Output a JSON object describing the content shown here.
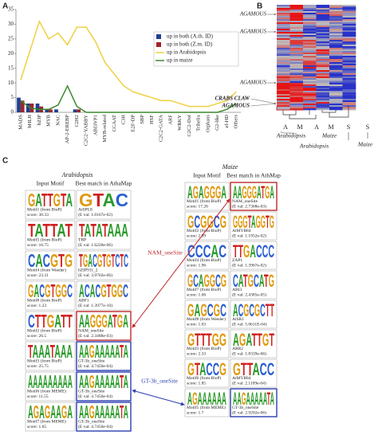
{
  "panel_labels": [
    "A",
    "B",
    "C"
  ],
  "chart_data": {
    "type": "combo",
    "categories": [
      "MADS",
      "bHLH",
      "bZIP",
      "MYB",
      "NAC",
      "AP-2-EREBP",
      "C2H2",
      "C2C2-YABBY",
      "ABI3VP1",
      "MYB-related",
      "CCAAT",
      "C3H",
      "E2F-DP",
      "SBP",
      "HSF",
      "C2C2-GATA",
      "ARF",
      "WRKY",
      "C2C2-Dof",
      "Trihelix",
      "Orphans",
      "G2-like",
      "zf-HD",
      "Others"
    ],
    "series": [
      {
        "name": "up in both (A.th. ID)",
        "type": "bar",
        "color": "#1f3f8f",
        "values": [
          5,
          3,
          3,
          1,
          1,
          0,
          1,
          0,
          0,
          0,
          0,
          0,
          0,
          0,
          0,
          0,
          0,
          0,
          0,
          0,
          0,
          0,
          0,
          0
        ]
      },
      {
        "name": "up in both (Z.m. ID)",
        "type": "bar",
        "color": "#a0242a",
        "values": [
          4,
          3,
          2,
          1,
          0,
          0,
          1,
          0,
          0,
          0,
          0,
          0,
          0,
          0,
          0,
          0,
          0,
          0,
          0,
          0,
          0,
          0,
          0,
          0
        ]
      },
      {
        "name": "up in Arabidopsis",
        "type": "line",
        "color": "#f0d040",
        "values": [
          11,
          21,
          31,
          25,
          27,
          23,
          29,
          29,
          24,
          17,
          13,
          9,
          7,
          6,
          5,
          4,
          4,
          3,
          2,
          2,
          2,
          3,
          4,
          7
        ]
      },
      {
        "name": "up in maize",
        "type": "line",
        "color": "#3a8a2a",
        "values": [
          4,
          1.5,
          1,
          1,
          2.5,
          9,
          2,
          0,
          0,
          0,
          0,
          0,
          0,
          0,
          0,
          0,
          0,
          0,
          0,
          0,
          0,
          0,
          1,
          3
        ]
      }
    ],
    "ylim": [
      0,
      35
    ],
    "yticks": [
      0,
      5,
      10,
      15,
      20,
      25,
      30,
      35
    ],
    "grid": false,
    "legend": "right"
  },
  "heatmap": {
    "row_labels": [
      "AGAMOUS",
      "AGAMOUS",
      "AGAMOUS",
      "CRABS CLAW",
      "AGAMOUS"
    ],
    "column_labels": [
      "A",
      "M",
      "A",
      "M",
      "S",
      "S"
    ],
    "group_labels": [
      "Arabidopsis",
      "Maize",
      "Arabidopsis",
      "Maize"
    ]
  },
  "motifs": {
    "arrows": [
      "NAM_oneSite",
      "GT-3b_oneSite"
    ],
    "left": {
      "species": "Arabidopsis",
      "headers": [
        "Input Motif",
        "Best match in AthaMap"
      ],
      "rows": [
        {
          "input_logo": "GATTGTA",
          "input_name": "Motif1 (from BioP)",
          "input_score": "score: 30.33",
          "match_logo": "GTAC",
          "match_name": "AtSPL8",
          "match_eval": "(E val: 1.0167e-02)",
          "highlight": null
        },
        {
          "input_logo": "TATTAT",
          "input_name": "Motif5 (from BioP)",
          "input_score": "score: 16.75",
          "match_logo": "TATATAAA",
          "match_name": "TBP",
          "match_eval": "(E val: 1.6228e-06)",
          "highlight": null
        },
        {
          "input_logo": "CACGTG",
          "input_name": "Motif4 (from Weeder)",
          "input_score": "score: 23.31",
          "match_logo": "TGACGTGTCTC",
          "match_name": "bZIP911_2",
          "match_eval": "(E val: 3.9702e-06)",
          "highlight": null
        },
        {
          "input_logo": "GACGTGGC",
          "input_name": "Motif8 (from BioP)",
          "input_score": "score: 1.23",
          "match_logo": "ACACGTGGC",
          "match_name": "ABF1",
          "match_eval": "(E val: 1.3977e-10)",
          "highlight": null
        },
        {
          "input_logo": "CTTGATT",
          "input_name": "Motif2 (from BioP)",
          "input_score": "score: 26.5",
          "match_logo": "AAGGGATGA",
          "match_name": "NAM_oneSite",
          "match_eval": "(E val: 2.3488e-03)",
          "highlight": "#c0282c"
        },
        {
          "input_logo": "TAAATAAA",
          "input_name": "Motif3 (from BioP)",
          "input_score": "score: 25.75",
          "match_logo": "AAGAAAAATA",
          "match_name": "GT-3b_oneSite",
          "match_eval": "(E val: 4.7450e-04)",
          "highlight": "#2b3fb0"
        },
        {
          "input_logo": "AAAAAAAAA",
          "input_name": "Motif6 (from MEME)",
          "input_score": "score: 11.55",
          "match_logo": "AAGAAAAATA",
          "match_name": "GT-3b_oneSite",
          "match_eval": "(E val: 4.7450e-04)",
          "highlight": "#2b3fb0"
        },
        {
          "input_logo": "AGAGAAGA",
          "input_name": "Motif7 (from MEME)",
          "input_score": "score: 1.65",
          "match_logo": "AAGAAAAATA",
          "match_name": "GT-3b_oneSite",
          "match_eval": "(E val: 4.7450e-04)",
          "highlight": "#2b3fb0"
        }
      ]
    },
    "right": {
      "species": "Maize",
      "headers": [
        "Input Motif",
        "Best match in AthMap"
      ],
      "rows": [
        {
          "input_logo": "AGAGGGA",
          "input_name": "Motif1 (from BioP)",
          "input_score": "score: 17.26",
          "match_logo": "AAGGGATGA",
          "match_name": "NAM_oneSite",
          "match_eval": "(E val: 2.7368e-03)",
          "highlight": "#c0282c"
        },
        {
          "input_logo": "GCGGCG",
          "input_name": "Motif2 (from BioP)",
          "input_score": "score: 2.99",
          "match_logo": "GGGTAGGTG",
          "match_name": "AtMYB84",
          "match_eval": "(E val: 1.1952e-02)",
          "highlight": null
        },
        {
          "input_logo": "CCCAC",
          "input_name": "Motif4 (from BioP)",
          "input_score": "score: 1.96",
          "match_logo": "TTGACCC",
          "match_name": "ZAP1",
          "match_eval": "(E val: 1.3967e-02)",
          "highlight": null
        },
        {
          "input_logo": "GCAGGCG",
          "input_name": "Motif7 (from BioP)",
          "input_score": "score: 1.06",
          "match_logo": "CATGCATG",
          "match_name": "ABI3",
          "match_eval": "(E val: 2.4385e-05)",
          "highlight": null
        },
        {
          "input_logo": "GAGCGC",
          "input_name": "Motif8 (from Weeder)",
          "input_score": "score: 1.03",
          "match_logo": "ACGCGCTT",
          "match_name": "AtSR1",
          "match_eval": "(E val: 5.0611E-04)",
          "highlight": null
        },
        {
          "input_logo": "GTTTGG",
          "input_name": "Motif3 (from BioP)",
          "input_score": "score: 2.33",
          "match_logo": "AGATTGT",
          "match_name": "ARR2",
          "match_eval": "(E val: 1.8339e-06)",
          "highlight": null
        },
        {
          "input_logo": "GTACCG",
          "input_name": "Motif6 (from BioP)",
          "input_score": "score: 1.85",
          "match_logo": "GTTACC",
          "match_name": "AtMYB84",
          "match_eval": "(E val: 2.1109e-04)",
          "highlight": null
        },
        {
          "input_logo": "AGAAAAAA",
          "input_name": "Motif5 (from MEME)",
          "input_score": "score: 1.7",
          "match_logo": "AAGAAAAATA",
          "match_name": "GT-3b_oneSite",
          "match_eval": "(E val: 2.9202e-06)",
          "highlight": "#2b3fb0"
        }
      ]
    }
  }
}
